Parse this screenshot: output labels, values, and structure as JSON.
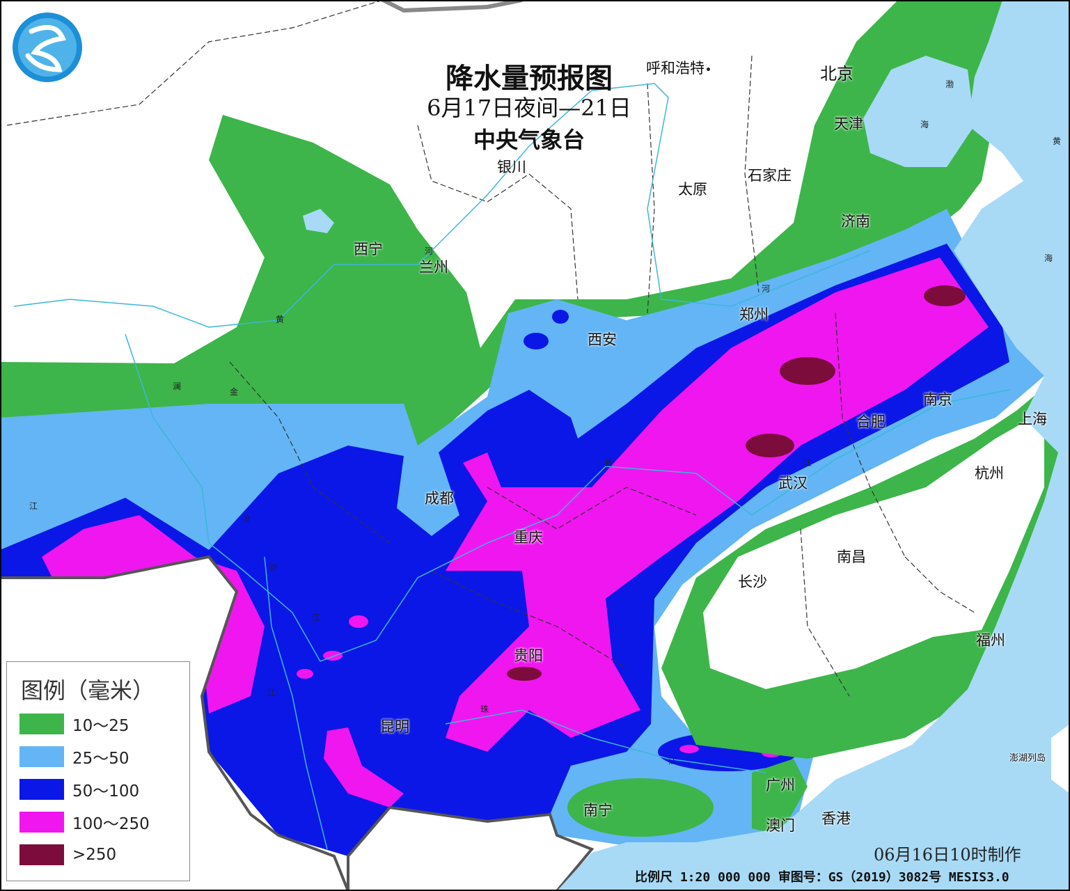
{
  "title": "降水量预报图",
  "period": "6月17日夜间—21日",
  "issuer": "中央气象台",
  "legend": {
    "title": "图例（毫米）",
    "items": [
      {
        "label": "10～25",
        "color": "#3db54a"
      },
      {
        "label": "25～50",
        "color": "#63b5f5"
      },
      {
        "label": "50～100",
        "color": "#0b17e6"
      },
      {
        "label": "100～250",
        "color": "#f016ef"
      },
      {
        "label": ">250",
        "color": "#7b0c3c"
      }
    ]
  },
  "sea_color": "#a8daf6",
  "cities": {
    "huhehaote": "呼和浩特",
    "beijing": "北京",
    "tianjin": "天津",
    "yinchuan": "银川",
    "taiyuan": "太原",
    "shijiazhuang": "石家庄",
    "jinan": "济南",
    "xining": "西宁",
    "lanzhou": "兰州",
    "zhengzhou": "郑州",
    "xian": "西安",
    "nanjing": "南京",
    "hefei": "合肥",
    "shanghai": "上海",
    "chengdu": "成都",
    "wuhan": "武汉",
    "hangzhou": "杭州",
    "chongqing": "重庆",
    "nanchang": "南昌",
    "changsha": "长沙",
    "fuzhou": "福州",
    "guiyang": "贵阳",
    "kunming": "昆明",
    "guangzhou": "广州",
    "nanning": "南宁",
    "aomen": "澳门",
    "xianggang": "香港",
    "penghu": "澎湖列岛"
  },
  "rivers": {
    "he1": "河",
    "he2": "河",
    "huang": "黄",
    "lan": "澜",
    "jin": "金",
    "jiang1": "江",
    "cang": "沧",
    "sha": "沙",
    "jiang2": "江",
    "jiang3": "江",
    "chang": "长",
    "jiang4": "江",
    "zhu": "珠",
    "jiang5": "江"
  },
  "seas": {
    "bo": "渤",
    "hai1": "海",
    "huang": "黄",
    "hai2": "海"
  },
  "made_time": "06月16日10时制作",
  "footer": "比例尺 1:20 000 000  审图号：GS（2019）3082号 MESIS3.0"
}
